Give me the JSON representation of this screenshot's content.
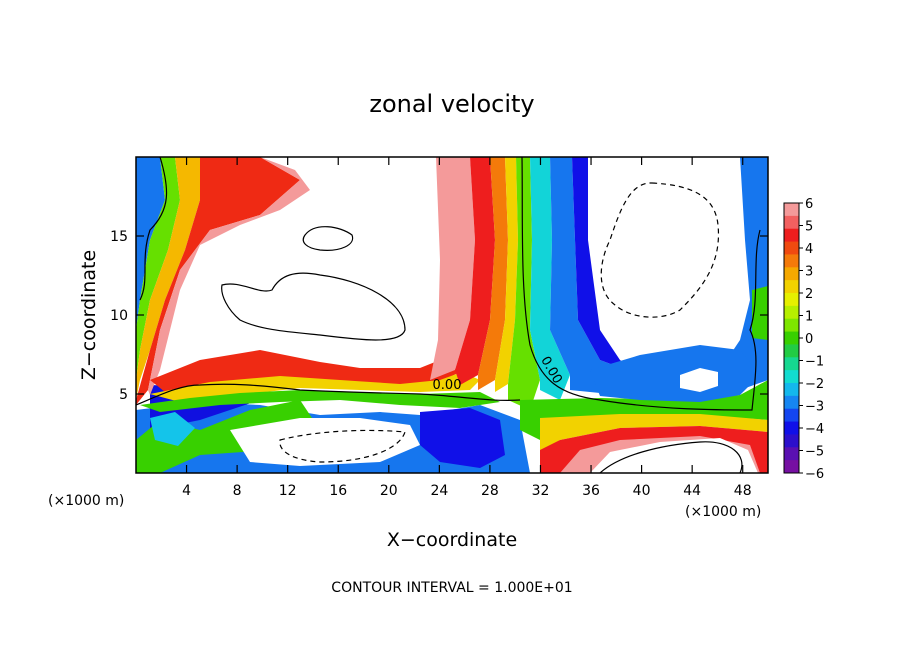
{
  "chart_data": {
    "type": "heatmap",
    "title": "zonal velocity",
    "xlabel": "X−coordinate",
    "ylabel": "Z−coordinate",
    "x_unit_left": "(×1000 m)",
    "x_unit_right": "(×1000 m)",
    "footer": "CONTOUR INTERVAL = 1.000E+01",
    "xlim": [
      0,
      50
    ],
    "ylim": [
      0,
      20
    ],
    "x_ticks": [
      4,
      8,
      12,
      16,
      20,
      24,
      28,
      32,
      36,
      40,
      44,
      48
    ],
    "x_tick_labels": [
      "4",
      "8",
      "12",
      "16",
      "20",
      "24",
      "28",
      "32",
      "36",
      "40",
      "44",
      "48"
    ],
    "y_ticks": [
      5,
      10,
      15
    ],
    "y_tick_labels": [
      "5",
      "10",
      "15"
    ],
    "colorbar": {
      "range": [
        -6,
        6
      ],
      "tick_labels": [
        "6",
        "5",
        "4",
        "3",
        "2",
        "1",
        "0",
        "−1",
        "−2",
        "−3",
        "−4",
        "−5",
        "−6"
      ],
      "colors": [
        "#f49a9a",
        "#f26060",
        "#ee1e1e",
        "#f04a10",
        "#f47a0a",
        "#f5a800",
        "#f2d200",
        "#e6f000",
        "#b6ef00",
        "#7ee600",
        "#38d000",
        "#22cc44",
        "#16d890",
        "#12dcd0",
        "#14b8ec",
        "#1686f2",
        "#1446f0",
        "#1010e8",
        "#2c10cc",
        "#5a10b2",
        "#7610a2"
      ]
    },
    "contour_labels": [
      "0.00",
      "0.00"
    ]
  }
}
